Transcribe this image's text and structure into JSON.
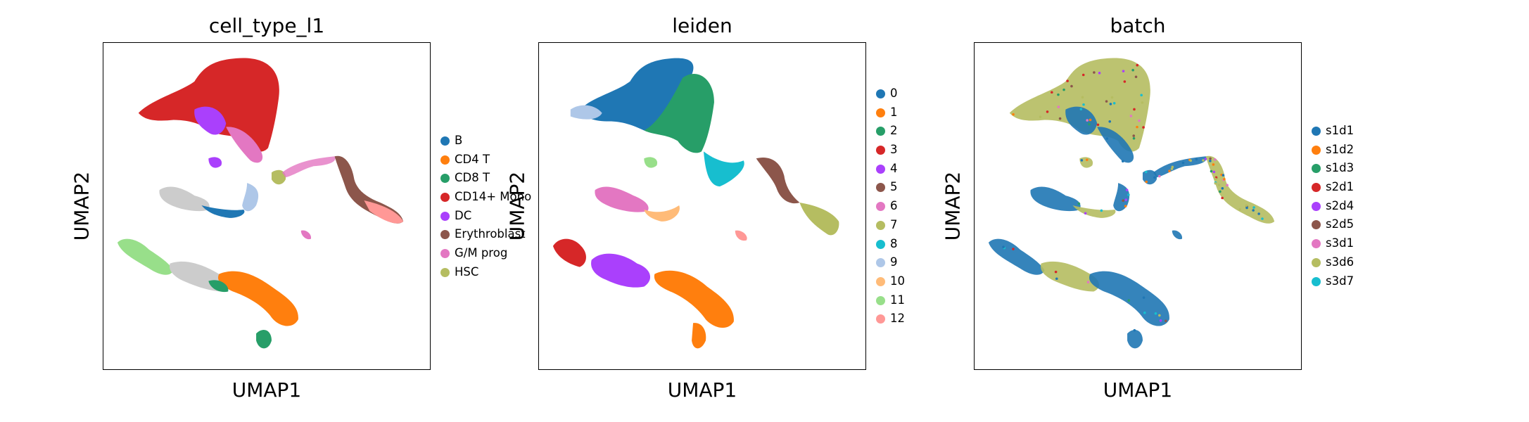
{
  "panels": [
    {
      "id": "p1",
      "title": "cell_type_l1",
      "xlabel": "UMAP1",
      "ylabel": "UMAP2",
      "legend": [
        {
          "label": "B",
          "color": "#1f77b4"
        },
        {
          "label": "CD4 T",
          "color": "#ff7f0e"
        },
        {
          "label": "CD8 T",
          "color": "#279e68"
        },
        {
          "label": "CD14+ Mono",
          "color": "#d62728"
        },
        {
          "label": "DC",
          "color": "#aa40fc"
        },
        {
          "label": "Erythroblast",
          "color": "#8c564b"
        },
        {
          "label": "G/M prog",
          "color": "#e377c2"
        },
        {
          "label": "HSC",
          "color": "#b5bd61"
        }
      ]
    },
    {
      "id": "p2",
      "title": "leiden",
      "xlabel": "UMAP1",
      "ylabel": "UMAP2",
      "legend": [
        {
          "label": "0",
          "color": "#1f77b4"
        },
        {
          "label": "1",
          "color": "#ff7f0e"
        },
        {
          "label": "2",
          "color": "#279e68"
        },
        {
          "label": "3",
          "color": "#d62728"
        },
        {
          "label": "4",
          "color": "#aa40fc"
        },
        {
          "label": "5",
          "color": "#8c564b"
        },
        {
          "label": "6",
          "color": "#e377c2"
        },
        {
          "label": "7",
          "color": "#b5bd61"
        },
        {
          "label": "8",
          "color": "#17becf"
        },
        {
          "label": "9",
          "color": "#aec7e8"
        },
        {
          "label": "10",
          "color": "#ffbb78"
        },
        {
          "label": "11",
          "color": "#98df8a"
        },
        {
          "label": "12",
          "color": "#ff9896"
        }
      ]
    },
    {
      "id": "p3",
      "title": "batch",
      "xlabel": "UMAP1",
      "ylabel": "UMAP2",
      "legend": [
        {
          "label": "s1d1",
          "color": "#1f77b4"
        },
        {
          "label": "s1d2",
          "color": "#ff7f0e"
        },
        {
          "label": "s1d3",
          "color": "#279e68"
        },
        {
          "label": "s2d1",
          "color": "#d62728"
        },
        {
          "label": "s2d4",
          "color": "#aa40fc"
        },
        {
          "label": "s2d5",
          "color": "#8c564b"
        },
        {
          "label": "s3d1",
          "color": "#e377c2"
        },
        {
          "label": "s3d6",
          "color": "#b5bd61"
        },
        {
          "label": "s3d7",
          "color": "#17becf"
        }
      ]
    }
  ],
  "chart_data": [
    {
      "type": "scatter",
      "title": "cell_type_l1",
      "xlabel": "UMAP1",
      "ylabel": "UMAP2",
      "color_by": "cell_type_l1",
      "legend": "right",
      "grid": false,
      "ticks": false,
      "categories": [
        "B",
        "CD4 T",
        "CD8 T",
        "CD14+ Mono",
        "DC",
        "Erythroblast",
        "G/M prog",
        "HSC"
      ]
    },
    {
      "type": "scatter",
      "title": "leiden",
      "xlabel": "UMAP1",
      "ylabel": "UMAP2",
      "color_by": "leiden",
      "legend": "right",
      "grid": false,
      "ticks": false,
      "categories": [
        "0",
        "1",
        "2",
        "3",
        "4",
        "5",
        "6",
        "7",
        "8",
        "9",
        "10",
        "11",
        "12"
      ]
    },
    {
      "type": "scatter",
      "title": "batch",
      "xlabel": "UMAP1",
      "ylabel": "UMAP2",
      "color_by": "batch",
      "legend": "right",
      "grid": false,
      "ticks": false,
      "categories": [
        "s1d1",
        "s1d2",
        "s1d3",
        "s2d1",
        "s2d4",
        "s2d5",
        "s3d1",
        "s3d6",
        "s3d7"
      ]
    }
  ]
}
